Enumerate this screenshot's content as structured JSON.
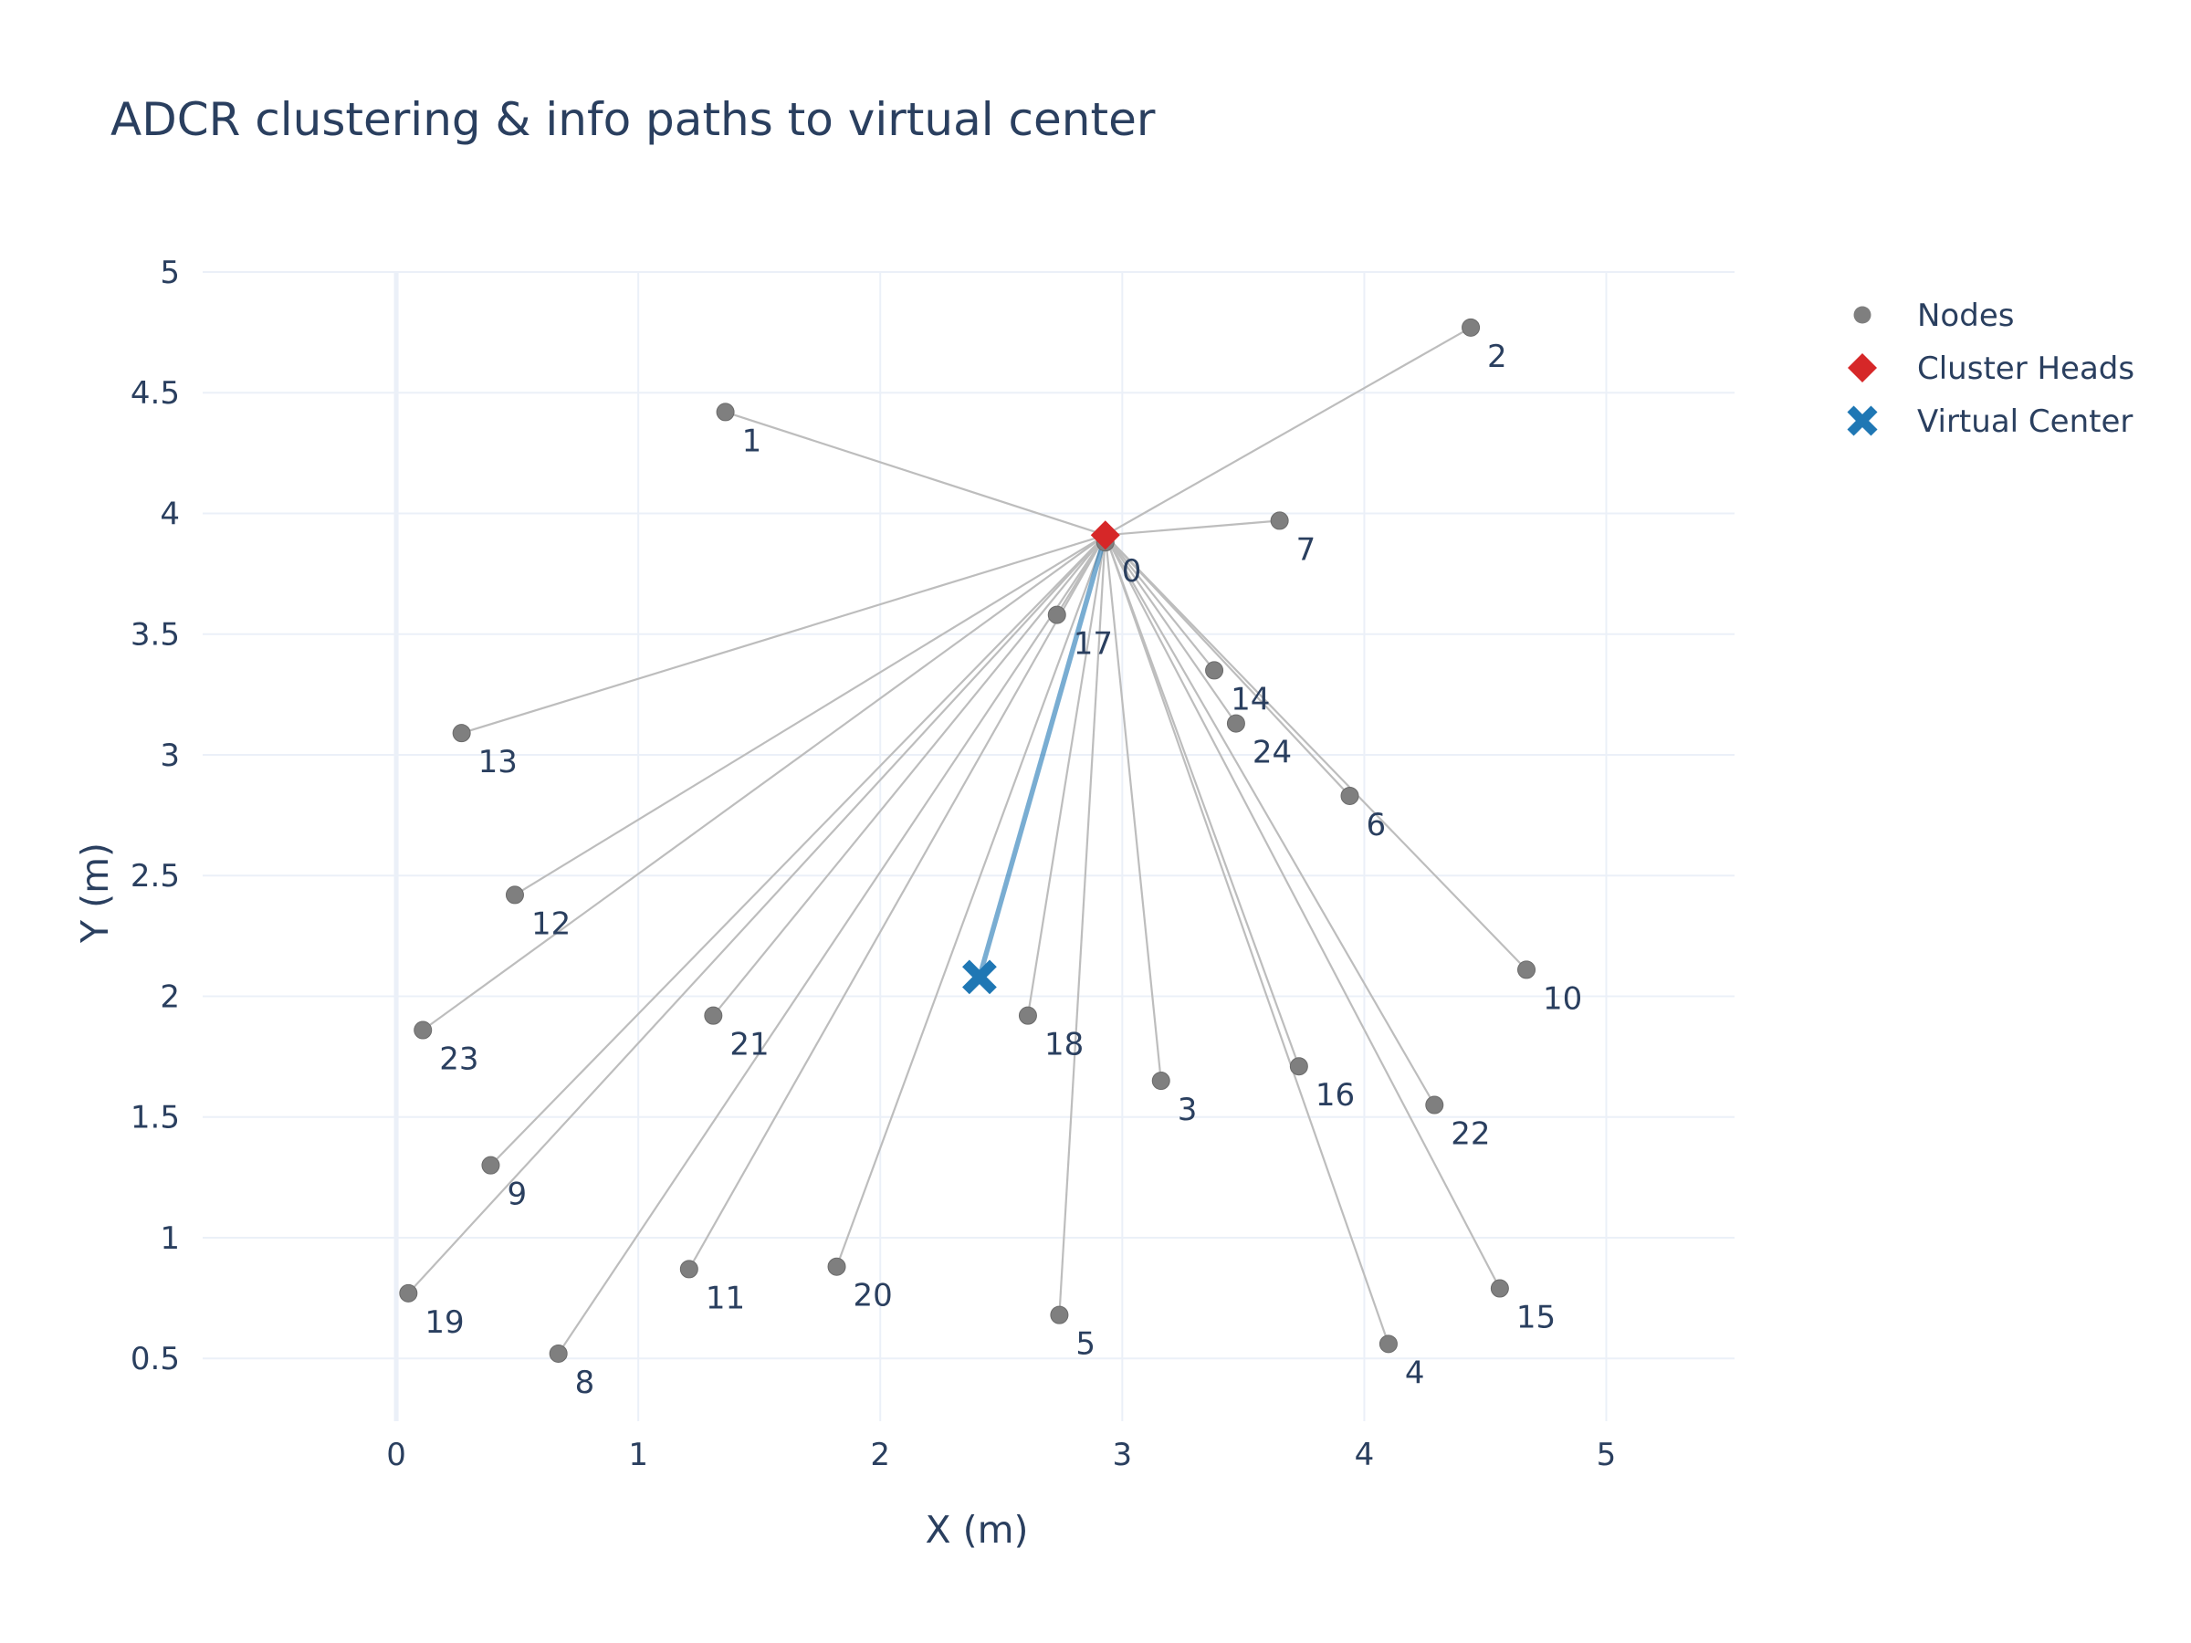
{
  "chart_data": {
    "type": "scatter",
    "title": "ADCR clustering & info paths to virtual center",
    "xlabel": "X (m)",
    "ylabel": "Y (m)",
    "xlim": [
      -0.8,
      5.53
    ],
    "ylim": [
      0.24,
      5.0
    ],
    "xticks": [
      0,
      1,
      2,
      3,
      4,
      5
    ],
    "yticks": [
      0.5,
      1,
      1.5,
      2,
      2.5,
      3,
      3.5,
      4,
      4.5,
      5
    ],
    "grid": true,
    "legend_position": "top-right",
    "colors": {
      "nodes": "#7f7f7f",
      "cluster_heads": "#d62728",
      "virtual_center": "#1f77b4",
      "member_links": "#bdbdbd",
      "info_path": "#1f77b4",
      "grid": "#ebf0f8",
      "text": "#2a3f5f"
    },
    "legend": [
      {
        "name": "Nodes",
        "symbol": "circle",
        "color": "#7f7f7f"
      },
      {
        "name": "Cluster Heads",
        "symbol": "diamond",
        "color": "#d62728"
      },
      {
        "name": "Virtual Center",
        "symbol": "x",
        "color": "#1f77b4"
      }
    ],
    "nodes": [
      {
        "id": "0",
        "x": 2.93,
        "y": 3.88
      },
      {
        "id": "1",
        "x": 1.36,
        "y": 4.42
      },
      {
        "id": "2",
        "x": 4.44,
        "y": 4.77
      },
      {
        "id": "3",
        "x": 3.16,
        "y": 1.65
      },
      {
        "id": "4",
        "x": 4.1,
        "y": 0.56
      },
      {
        "id": "5",
        "x": 2.74,
        "y": 0.68
      },
      {
        "id": "6",
        "x": 3.94,
        "y": 2.83
      },
      {
        "id": "7",
        "x": 3.65,
        "y": 3.97
      },
      {
        "id": "8",
        "x": 0.67,
        "y": 0.52
      },
      {
        "id": "9",
        "x": 0.39,
        "y": 1.3
      },
      {
        "id": "10",
        "x": 4.67,
        "y": 2.11
      },
      {
        "id": "11",
        "x": 1.21,
        "y": 0.87
      },
      {
        "id": "12",
        "x": 0.49,
        "y": 2.42
      },
      {
        "id": "13",
        "x": 0.27,
        "y": 3.09
      },
      {
        "id": "14",
        "x": 3.38,
        "y": 3.35
      },
      {
        "id": "15",
        "x": 4.56,
        "y": 0.79
      },
      {
        "id": "16",
        "x": 3.73,
        "y": 1.71
      },
      {
        "id": "17",
        "x": 2.73,
        "y": 3.58
      },
      {
        "id": "18",
        "x": 2.61,
        "y": 1.92
      },
      {
        "id": "19",
        "x": 0.05,
        "y": 0.77
      },
      {
        "id": "20",
        "x": 1.82,
        "y": 0.88
      },
      {
        "id": "21",
        "x": 1.31,
        "y": 1.92
      },
      {
        "id": "22",
        "x": 4.29,
        "y": 1.55
      },
      {
        "id": "23",
        "x": 0.11,
        "y": 1.86
      },
      {
        "id": "24",
        "x": 3.47,
        "y": 3.13
      }
    ],
    "cluster_heads": [
      {
        "x": 2.93,
        "y": 3.91
      }
    ],
    "virtual_center": {
      "x": 2.41,
      "y": 2.08
    }
  }
}
